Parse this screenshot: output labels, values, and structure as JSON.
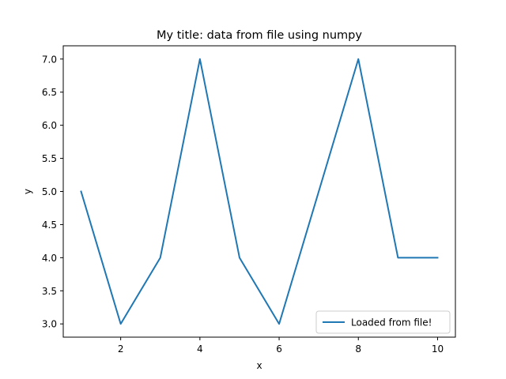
{
  "chart_data": {
    "type": "line",
    "title": "My title: data from file using numpy",
    "xlabel": "x",
    "ylabel": "y",
    "xlim": [
      0.55,
      10.45
    ],
    "ylim": [
      2.8,
      7.2
    ],
    "xticks": [
      2,
      4,
      6,
      8,
      10
    ],
    "yticks": [
      3.0,
      3.5,
      4.0,
      4.5,
      5.0,
      5.5,
      6.0,
      6.5,
      7.0
    ],
    "xtick_labels": [
      "2",
      "4",
      "6",
      "8",
      "10"
    ],
    "ytick_labels": [
      "3.0",
      "3.5",
      "4.0",
      "4.5",
      "5.0",
      "5.5",
      "6.0",
      "6.5",
      "7.0"
    ],
    "grid": false,
    "legend_position": "lower-right",
    "series": [
      {
        "name": "Loaded from file!",
        "color": "#1f77b4",
        "x": [
          1,
          2,
          3,
          4,
          5,
          6,
          7,
          8,
          9,
          10
        ],
        "y": [
          5,
          3,
          4,
          7,
          4,
          3,
          5,
          7,
          4,
          4
        ]
      }
    ]
  }
}
